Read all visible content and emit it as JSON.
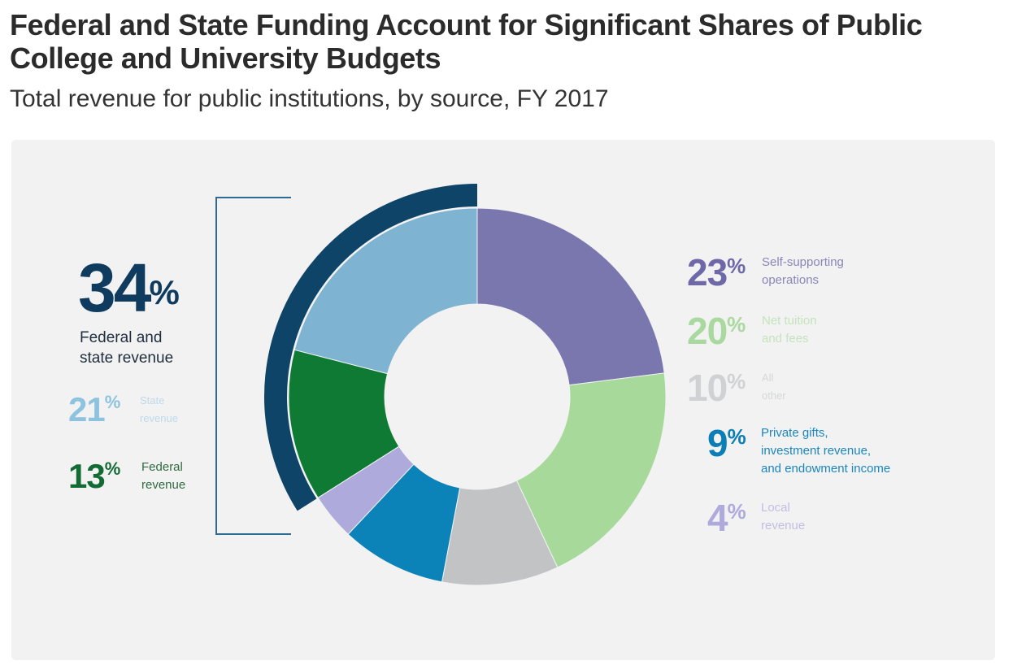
{
  "title": "Federal and State Funding Account for Significant Shares of Public College and University Budgets",
  "subtitle": "Total revenue for public institutions, by source, FY 2017",
  "colors": {
    "panel_bg": "#f2f2f3",
    "bracket": "#2e6b94",
    "outer_arc": "#0d4468"
  },
  "bracket_group": {
    "value": "34",
    "percent_sign": "%",
    "label_line1": "Federal and",
    "label_line2": "state revenue"
  },
  "chart_data": {
    "type": "pie",
    "variant": "donut",
    "unit": "%",
    "slices": [
      {
        "label_line1": "Self-supporting",
        "label_line2": "operations",
        "value": 23,
        "color": "#7a76ae"
      },
      {
        "label_line1": "Net tuition",
        "label_line2": "and fees",
        "value": 20,
        "color": "#a6d99a"
      },
      {
        "label_line1": "All",
        "label_line2": "other",
        "value": 10,
        "color": "#c2c3c5"
      },
      {
        "label_line1": "Private gifts,",
        "label_line2": "investment revenue,",
        "label_line3": "and endowment income",
        "value": 9,
        "color": "#0b82b8"
      },
      {
        "label_line1": "Local",
        "label_line2": "revenue",
        "value": 4,
        "color": "#aeaadc"
      },
      {
        "label_line1": "Federal",
        "label_line2": "revenue",
        "value": 13,
        "color": "#0f7a33"
      },
      {
        "label_line1": "State",
        "label_line2": "revenue",
        "value": 21,
        "color": "#7eb4d2"
      }
    ]
  }
}
